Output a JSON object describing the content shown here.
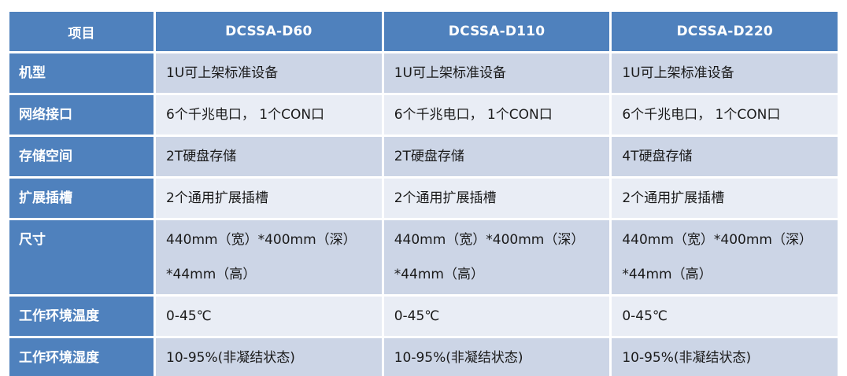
{
  "table": {
    "header": {
      "item_label": "项目",
      "columns": [
        "DCSSA-D60",
        "DCSSA-D110",
        "DCSSA-D220"
      ]
    },
    "rows": [
      {
        "label": "机型",
        "values": [
          "1U可上架标准设备",
          "1U可上架标准设备",
          "1U可上架标准设备"
        ]
      },
      {
        "label": "网络接口",
        "values": [
          "6个千兆电口， 1个CON口",
          "6个千兆电口， 1个CON口",
          "6个千兆电口， 1个CON口"
        ]
      },
      {
        "label": "存储空间",
        "values": [
          "2T硬盘存储",
          "2T硬盘存储",
          "4T硬盘存储"
        ]
      },
      {
        "label": "扩展插槽",
        "values": [
          "2个通用扩展插槽",
          "2个通用扩展插槽",
          "2个通用扩展插槽"
        ]
      },
      {
        "label": "尺寸",
        "values": [
          "440mm（宽）*400mm（深）\n*44mm（高）",
          "440mm（宽）*400mm（深）\n*44mm（高）",
          "440mm（宽）*400mm（深）\n*44mm（高）"
        ]
      },
      {
        "label": "工作环境温度",
        "values": [
          "0-45℃",
          "0-45℃",
          "0-45℃"
        ]
      },
      {
        "label": "工作环境湿度",
        "values": [
          "10-95%(非凝结状态)",
          "10-95%(非凝结状态)",
          "10-95%(非凝结状态)"
        ]
      }
    ],
    "colors": {
      "header_bg": "#4f81bd",
      "header_text": "#ffffff",
      "band_dark": "#ccd5e6",
      "band_light": "#e9edf5",
      "value_text": "#1a1a1a",
      "grid": "#ffffff"
    }
  }
}
